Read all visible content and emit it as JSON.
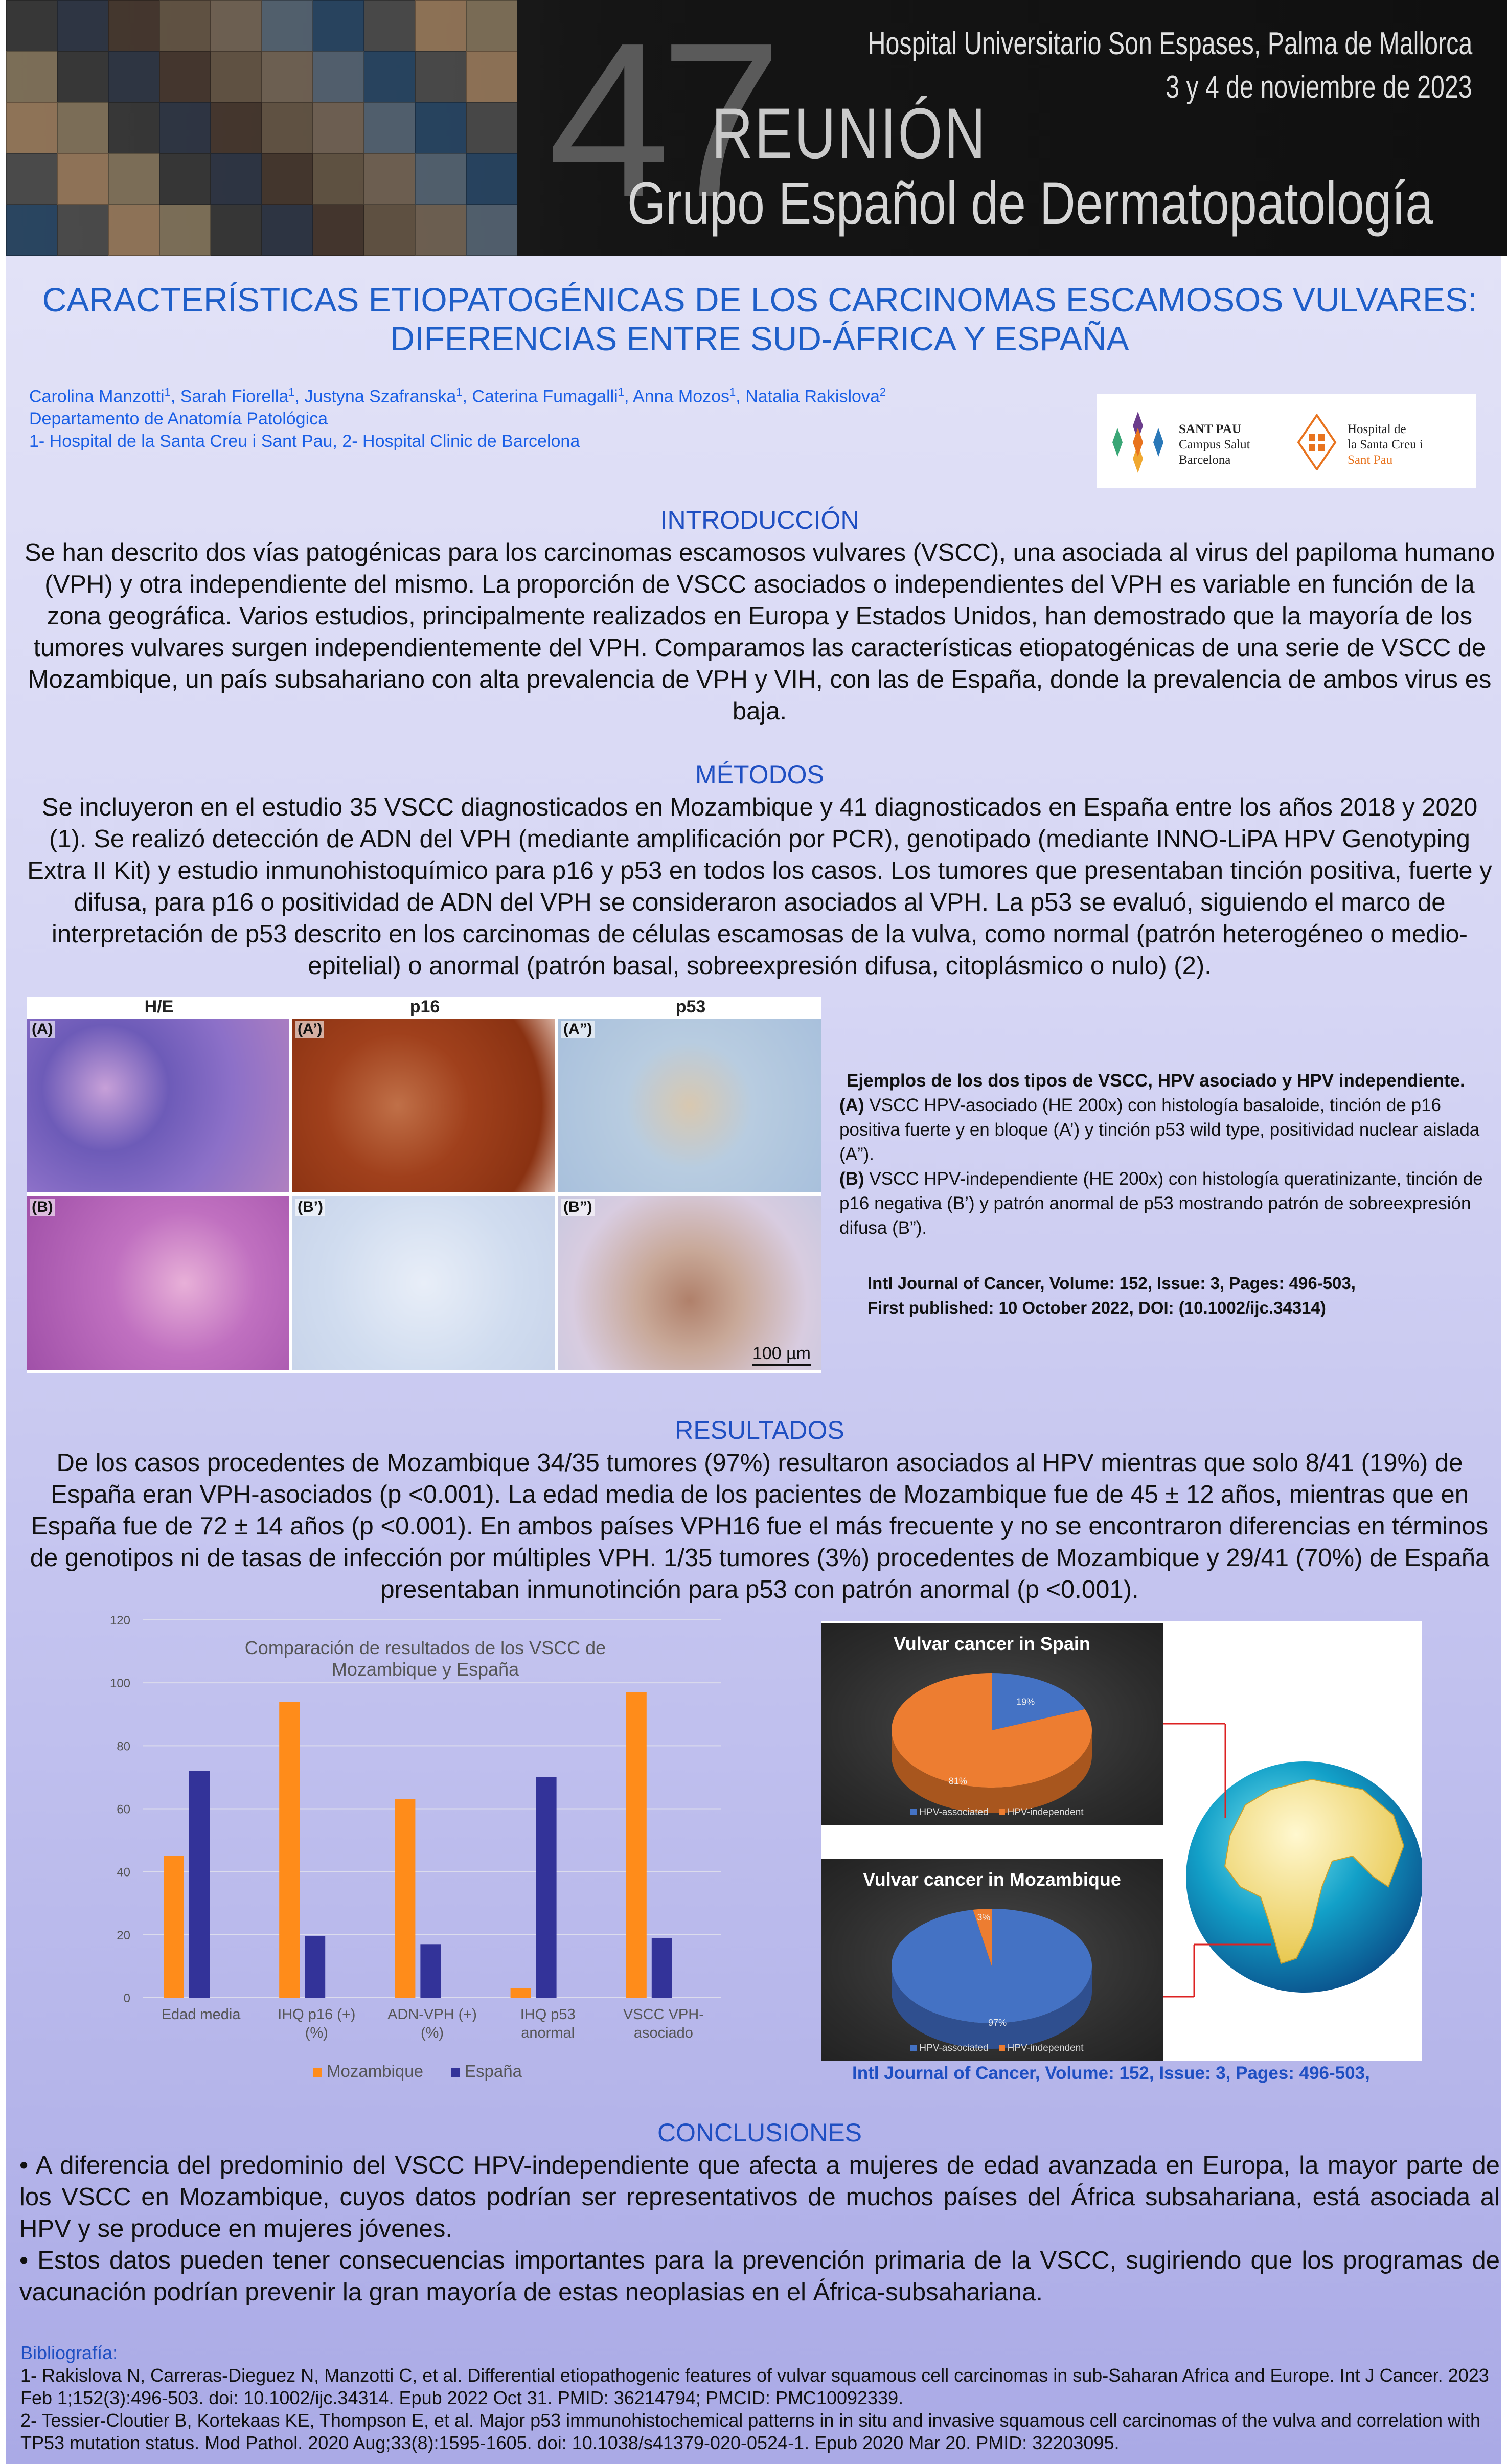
{
  "header": {
    "number": "47",
    "reunion": "REUNIÓN",
    "group": "Grupo Español de Dermatopatología",
    "hospital": "Hospital Universitario Son Espases, Palma de Mallorca",
    "date": "3 y 4 de noviembre de 2023"
  },
  "title": {
    "line1": "CARACTERÍSTICAS ETIOPATOGÉNICAS DE LOS CARCINOMAS ESCAMOSOS VULVARES:",
    "line2": "DIFERENCIAS ENTRE SUD-ÁFRICA Y ESPAÑA"
  },
  "authors": {
    "names": [
      {
        "name": "Carolina Manzotti",
        "aff": "1"
      },
      {
        "name": "Sarah Fiorella",
        "aff": "1"
      },
      {
        "name": "Justyna Szafranska",
        "aff": "1"
      },
      {
        "name": "Caterina Fumagalli",
        "aff": "1"
      },
      {
        "name": "Anna Mozos",
        "aff": "1"
      },
      {
        "name": "Natalia Rakislova",
        "aff": "2"
      }
    ],
    "department": "Departamento de Anatomía Patológica",
    "affiliations": "1- Hospital de la Santa Creu i Sant Pau, 2- Hospital Clinic de Barcelona"
  },
  "logos": {
    "santpau": [
      "SANT PAU",
      "Campus Salut",
      "Barcelona"
    ],
    "hospital": [
      "Hospital de",
      "la Santa Creu i",
      "Sant Pau"
    ]
  },
  "intro": {
    "heading": "INTRODUCCIÓN",
    "text": "Se han descrito dos vías patogénicas para los carcinomas escamosos vulvares (VSCC), una asociada al virus del papiloma humano (VPH) y otra independiente del mismo. La proporción de VSCC asociados o independientes del VPH es variable en función de la zona geográfica. Varios estudios, principalmente realizados en Europa y Estados Unidos, han demostrado que la mayoría de los tumores vulvares surgen independientemente del VPH. Comparamos las características etiopatogénicas de una serie de VSCC de Mozambique, un país subsahariano con alta prevalencia de VPH y VIH, con las de España, donde la prevalencia de ambos virus es baja."
  },
  "methods": {
    "heading": "MÉTODOS",
    "text": "Se incluyeron en el estudio 35 VSCC diagnosticados en Mozambique y 41 diagnosticados en España entre los años 2018 y 2020 (1). Se realizó detección de ADN del VPH (mediante amplificación por PCR), genotipado (mediante INNO-LiPA HPV Genotyping Extra II Kit) y estudio inmunohistoquímico para p16 y p53 en todos los casos. Los tumores que presentaban tinción positiva, fuerte y difusa, para p16 o positividad de ADN del VPH se consideraron asociados al VPH. La p53 se evaluó, siguiendo el marco de interpretación de p53 descrito en los carcinomas de células escamosas de la vulva, como normal (patrón heterogéneo o medio-epitelial) o anormal (patrón basal, sobreexpresión difusa, citoplásmico o nulo) (2)."
  },
  "figure": {
    "columns": [
      "H/E",
      "p16",
      "p53"
    ],
    "panels": [
      "(A)",
      "(A’)",
      "(A”)",
      "(B)",
      "(B’)",
      "(B”)"
    ],
    "scale": "100 µm",
    "caption_title": "Ejemplos de los dos tipos de VSCC, HPV asociado y HPV independiente.",
    "caption_a_label": "(A)",
    "caption_a": " VSCC HPV-asociado (HE 200x) con histología basaloide, tinción de p16 positiva fuerte y en bloque (A’) y tinción p53 wild type, positividad nuclear aislada (A”).",
    "caption_b_label": "(B)",
    "caption_b": " VSCC HPV-independiente (HE 200x) con histología queratinizante, tinción de p16 negativa (B’) y patrón anormal de p53 mostrando patrón de sobreexpresión difusa (B”).",
    "source1": "Intl Journal of Cancer, Volume: 152, Issue: 3, Pages: 496-503,",
    "source2": "First published: 10 October 2022, DOI: (10.1002/ijc.34314)"
  },
  "results": {
    "heading": "RESULTADOS",
    "text": "De los casos procedentes de Mozambique 34/35 tumores (97%) resultaron asociados al HPV mientras que solo 8/41 (19%) de España eran VPH-asociados (p <0.001). La edad media de los pacientes de Mozambique fue de 45 ± 12 años, mientras que en España fue de 72 ± 14 años (p <0.001). En ambos países VPH16 fue el más frecuente y no se encontraron diferencias en términos de genotipos ni de tasas de infección por múltiples VPH. 1/35 tumores (3%) procedentes de Mozambique y 29/41 (70%) de España presentaban inmunotinción para p53 con patrón anormal (p <0.001)."
  },
  "chart_data": [
    {
      "type": "bar",
      "title": "Comparación de resultados de los VSCC de Mozambique y España",
      "categories": [
        "Edad media",
        "IHQ p16 (+) (%)",
        "ADN-VPH (+) (%)",
        "IHQ p53 anormal",
        "VSCC VPH-asociado"
      ],
      "series": [
        {
          "name": "Mozambique",
          "color": "#ff8c1a",
          "values": [
            45,
            94,
            63,
            3,
            97
          ]
        },
        {
          "name": "España",
          "color": "#333399",
          "values": [
            72,
            19.5,
            17,
            70,
            19
          ]
        }
      ],
      "ylim": [
        0,
        120
      ],
      "yticks": [
        0,
        20,
        40,
        60,
        80,
        100,
        120
      ],
      "grid": true,
      "legend": "bottom"
    },
    {
      "type": "pie",
      "title": "Vulvar cancer in Spain",
      "labels": [
        "HPV-associated",
        "HPV-independent"
      ],
      "values": [
        19,
        81
      ],
      "value_labels": [
        "19%",
        "81%"
      ],
      "colors": [
        "#4472c4",
        "#ed7d31"
      ],
      "legend": "bottom"
    },
    {
      "type": "pie",
      "title": "Vulvar cancer in Mozambique",
      "labels": [
        "HPV-associated",
        "HPV-independent"
      ],
      "values": [
        97,
        3
      ],
      "value_labels": [
        "97%",
        "3%"
      ],
      "colors": [
        "#4472c4",
        "#ed7d31"
      ],
      "legend": "bottom"
    }
  ],
  "pie_source": "Intl Journal of Cancer, Volume: 152, Issue: 3, Pages: 496-503,",
  "conclusions": {
    "heading": "CONCLUSIONES",
    "items": [
      "• A diferencia del predominio del VSCC HPV-independiente que afecta a mujeres de edad avanzada en Europa, la mayor parte de los VSCC en Mozambique, cuyos datos podrían ser representativos de muchos países del África subsahariana, está asociada al HPV y se produce en mujeres jóvenes.",
      "• Estos datos pueden tener consecuencias importantes para la prevención primaria de la VSCC, sugiriendo que los programas de vacunación podrían prevenir la gran mayoría de estas neoplasias en el África-subsahariana."
    ]
  },
  "bibliography": {
    "heading": "Bibliografía:",
    "refs": [
      "1- Rakislova N, Carreras-Dieguez N, Manzotti C, et al. Differential etiopathogenic features of vulvar squamous cell carcinomas in sub-Saharan Africa and Europe. Int J Cancer. 2023 Feb 1;152(3):496-503. doi: 10.1002/ijc.34314. Epub 2022 Oct 31. PMID: 36214794; PMCID: PMC10092339.",
      "2- Tessier-Cloutier B, Kortekaas KE, Thompson E, et al. Major p53 immunohistochemical patterns in in situ and invasive squamous cell carcinomas of the vulva and correlation with TP53 mutation status. Mod Pathol. 2020 Aug;33(8):1595-1605. doi: 10.1038/s41379-020-0524-1. Epub 2020 Mar 20. PMID: 32203095."
    ]
  }
}
